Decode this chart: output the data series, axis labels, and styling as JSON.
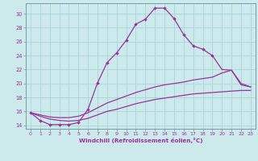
{
  "xlabel": "Windchill (Refroidissement éolien,°C)",
  "xlim": [
    -0.5,
    23.5
  ],
  "ylim": [
    13.5,
    31.5
  ],
  "yticks": [
    14,
    16,
    18,
    20,
    22,
    24,
    26,
    28,
    30
  ],
  "xticks": [
    0,
    1,
    2,
    3,
    4,
    5,
    6,
    7,
    8,
    9,
    10,
    11,
    12,
    13,
    14,
    15,
    16,
    17,
    18,
    19,
    20,
    21,
    22,
    23
  ],
  "bg_color": "#cce9eb",
  "grid_color": "#a8d5d8",
  "line_color": "#993399",
  "line1_x": [
    0,
    1,
    2,
    3,
    4,
    5,
    6,
    7,
    8,
    9,
    10,
    11,
    12,
    13,
    14,
    15,
    16,
    17,
    18,
    19
  ],
  "line1_y": [
    15.8,
    14.7,
    14.1,
    14.1,
    14.1,
    14.4,
    16.3,
    20.1,
    23.0,
    24.4,
    26.2,
    28.5,
    29.2,
    30.8,
    30.8,
    29.3,
    27.0,
    25.4,
    24.9,
    24.0
  ],
  "line2_x": [
    19,
    20,
    21,
    22,
    23
  ],
  "line2_y": [
    24.0,
    22.0,
    21.9,
    19.8,
    19.5
  ],
  "line3_x": [
    0,
    1,
    2,
    3,
    4,
    5,
    6,
    7,
    8,
    9,
    10,
    11,
    12,
    13,
    14,
    15,
    16,
    17,
    18,
    19,
    20,
    21,
    22,
    23
  ],
  "line3_y": [
    15.8,
    15.5,
    15.2,
    15.1,
    15.1,
    15.3,
    15.8,
    16.5,
    17.2,
    17.7,
    18.2,
    18.7,
    19.1,
    19.5,
    19.8,
    20.0,
    20.2,
    20.5,
    20.7,
    20.9,
    21.5,
    21.9,
    20.0,
    19.5
  ],
  "line4_x": [
    0,
    1,
    2,
    3,
    4,
    5,
    6,
    7,
    8,
    9,
    10,
    11,
    12,
    13,
    14,
    15,
    16,
    17,
    18,
    19,
    20,
    21,
    22,
    23
  ],
  "line4_y": [
    15.8,
    15.3,
    14.9,
    14.7,
    14.6,
    14.7,
    15.0,
    15.5,
    16.0,
    16.3,
    16.7,
    17.1,
    17.4,
    17.7,
    17.9,
    18.1,
    18.3,
    18.5,
    18.6,
    18.7,
    18.8,
    18.9,
    19.0,
    19.0
  ]
}
